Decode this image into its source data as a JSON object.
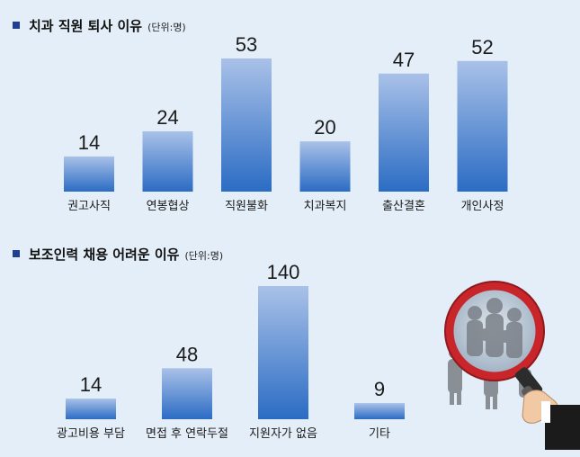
{
  "chart_data": [
    {
      "type": "bar",
      "title": "치과 직원 퇴사 이유",
      "unit": "(단위:명)",
      "categories": [
        "권고사직",
        "연봉협상",
        "직원불화",
        "치과복지",
        "출산결혼",
        "개인사정"
      ],
      "values": [
        14,
        24,
        53,
        20,
        47,
        52
      ],
      "ylim": [
        0,
        53
      ],
      "grid": false,
      "legend": "none"
    },
    {
      "type": "bar",
      "title": "보조인력 채용 어려운 이유",
      "unit": "(단위:명)",
      "categories": [
        "광고비용 부담",
        "면접 후 연락두절",
        "지원자가 없음",
        "기타"
      ],
      "values": [
        14,
        48,
        140,
        9
      ],
      "ylim": [
        0,
        140
      ],
      "grid": false,
      "legend": "none"
    }
  ],
  "colors": {
    "bar_top": "#a9c1e8",
    "bar_bottom": "#2b6cc4",
    "background": "#e3eef8",
    "bullet": "#1f3f8f"
  },
  "illustration": {
    "icon": "magnifying-glass-over-crowd-icon"
  }
}
